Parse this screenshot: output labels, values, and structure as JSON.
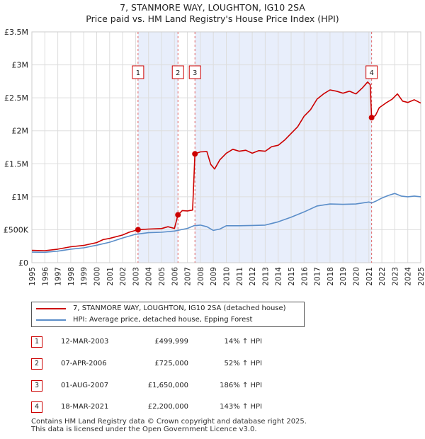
{
  "header": {
    "title": "7, STANMORE WAY, LOUGHTON, IG10 2SA",
    "subtitle": "Price paid vs. HM Land Registry's House Price Index (HPI)"
  },
  "chart_data": {
    "type": "line",
    "x_range": [
      1995,
      2025
    ],
    "ylim": [
      0,
      3500000
    ],
    "y_ticks": [
      {
        "value": 0,
        "label": "£0"
      },
      {
        "value": 500000,
        "label": "£500K"
      },
      {
        "value": 1000000,
        "label": "£1M"
      },
      {
        "value": 1500000,
        "label": "£1.5M"
      },
      {
        "value": 2000000,
        "label": "£2M"
      },
      {
        "value": 2500000,
        "label": "£2.5M"
      },
      {
        "value": 3000000,
        "label": "£3M"
      },
      {
        "value": 3500000,
        "label": "£3.5M"
      }
    ],
    "x_ticks": [
      "1995",
      "1996",
      "1997",
      "1998",
      "1999",
      "2000",
      "2001",
      "2002",
      "2003",
      "2004",
      "2005",
      "2006",
      "2007",
      "2008",
      "2009",
      "2010",
      "2011",
      "2012",
      "2013",
      "2014",
      "2015",
      "2016",
      "2017",
      "2018",
      "2019",
      "2020",
      "2021",
      "2022",
      "2023",
      "2024",
      "2025"
    ],
    "grid": true,
    "shaded_periods": [
      [
        2003.19,
        2006.27
      ],
      [
        2007.58,
        2021.21
      ]
    ],
    "series": [
      {
        "name": "7, STANMORE WAY, LOUGHTON, IG10 2SA (detached house)",
        "color": "#cc0000",
        "points": [
          [
            1995.0,
            187000
          ],
          [
            1996.0,
            183000
          ],
          [
            1997.0,
            205000
          ],
          [
            1998.0,
            242000
          ],
          [
            1999.0,
            262000
          ],
          [
            2000.0,
            305000
          ],
          [
            2000.5,
            350000
          ],
          [
            2001.0,
            368000
          ],
          [
            2002.0,
            420000
          ],
          [
            2002.5,
            462000
          ],
          [
            2003.19,
            499999
          ],
          [
            2004.0,
            510000
          ],
          [
            2005.0,
            518000
          ],
          [
            2005.5,
            545000
          ],
          [
            2006.0,
            520000
          ],
          [
            2006.27,
            725000
          ],
          [
            2006.6,
            790000
          ],
          [
            2007.0,
            785000
          ],
          [
            2007.4,
            798000
          ],
          [
            2007.58,
            1650000
          ],
          [
            2008.0,
            1680000
          ],
          [
            2008.5,
            1685000
          ],
          [
            2008.8,
            1490000
          ],
          [
            2009.1,
            1420000
          ],
          [
            2009.5,
            1560000
          ],
          [
            2010.0,
            1660000
          ],
          [
            2010.5,
            1720000
          ],
          [
            2011.0,
            1690000
          ],
          [
            2011.5,
            1705000
          ],
          [
            2012.0,
            1660000
          ],
          [
            2012.5,
            1700000
          ],
          [
            2013.0,
            1690000
          ],
          [
            2013.5,
            1760000
          ],
          [
            2014.0,
            1780000
          ],
          [
            2014.5,
            1860000
          ],
          [
            2015.0,
            1960000
          ],
          [
            2015.5,
            2060000
          ],
          [
            2016.0,
            2220000
          ],
          [
            2016.5,
            2320000
          ],
          [
            2017.0,
            2480000
          ],
          [
            2017.5,
            2560000
          ],
          [
            2018.0,
            2620000
          ],
          [
            2018.5,
            2600000
          ],
          [
            2019.0,
            2570000
          ],
          [
            2019.5,
            2600000
          ],
          [
            2020.0,
            2560000
          ],
          [
            2020.5,
            2650000
          ],
          [
            2020.9,
            2740000
          ],
          [
            2021.1,
            2700000
          ],
          [
            2021.21,
            2200000
          ],
          [
            2021.5,
            2230000
          ],
          [
            2021.8,
            2350000
          ],
          [
            2022.3,
            2420000
          ],
          [
            2022.8,
            2480000
          ],
          [
            2023.2,
            2560000
          ],
          [
            2023.6,
            2450000
          ],
          [
            2024.0,
            2430000
          ],
          [
            2024.5,
            2470000
          ],
          [
            2025.0,
            2420000
          ]
        ]
      },
      {
        "name": "HPI: Average price, detached house, Epping Forest",
        "color": "#5b8ec9",
        "points": [
          [
            1995.0,
            160000
          ],
          [
            1996.0,
            158000
          ],
          [
            1997.0,
            175000
          ],
          [
            1998.0,
            205000
          ],
          [
            1999.0,
            225000
          ],
          [
            2000.0,
            265000
          ],
          [
            2001.0,
            310000
          ],
          [
            2002.0,
            375000
          ],
          [
            2003.0,
            430000
          ],
          [
            2004.0,
            455000
          ],
          [
            2005.0,
            462000
          ],
          [
            2006.0,
            480000
          ],
          [
            2007.0,
            520000
          ],
          [
            2007.5,
            560000
          ],
          [
            2008.0,
            570000
          ],
          [
            2008.5,
            545000
          ],
          [
            2009.0,
            490000
          ],
          [
            2009.5,
            510000
          ],
          [
            2010.0,
            560000
          ],
          [
            2011.0,
            560000
          ],
          [
            2012.0,
            565000
          ],
          [
            2013.0,
            570000
          ],
          [
            2014.0,
            620000
          ],
          [
            2015.0,
            690000
          ],
          [
            2016.0,
            770000
          ],
          [
            2017.0,
            860000
          ],
          [
            2018.0,
            890000
          ],
          [
            2019.0,
            885000
          ],
          [
            2020.0,
            890000
          ],
          [
            2020.5,
            905000
          ],
          [
            2021.0,
            920000
          ],
          [
            2021.21,
            905000
          ],
          [
            2021.5,
            930000
          ],
          [
            2022.0,
            980000
          ],
          [
            2022.5,
            1020000
          ],
          [
            2023.0,
            1050000
          ],
          [
            2023.5,
            1010000
          ],
          [
            2024.0,
            1000000
          ],
          [
            2024.5,
            1010000
          ],
          [
            2025.0,
            1000000
          ]
        ]
      }
    ],
    "sale_points": [
      {
        "label": "1",
        "x": 2003.19,
        "y": 499999
      },
      {
        "label": "2",
        "x": 2006.27,
        "y": 725000
      },
      {
        "label": "3",
        "x": 2007.58,
        "y": 1650000
      },
      {
        "label": "4",
        "x": 2021.21,
        "y": 2200000
      }
    ]
  },
  "legend": {
    "property_label": "7, STANMORE WAY, LOUGHTON, IG10 2SA (detached house)",
    "hpi_label": "HPI: Average price, detached house, Epping Forest"
  },
  "transactions": [
    {
      "num": "1",
      "date": "12-MAR-2003",
      "price": "£499,999",
      "hpi": "14% ↑ HPI"
    },
    {
      "num": "2",
      "date": "07-APR-2006",
      "price": "£725,000",
      "hpi": "52% ↑ HPI"
    },
    {
      "num": "3",
      "date": "01-AUG-2007",
      "price": "£1,650,000",
      "hpi": "186% ↑ HPI"
    },
    {
      "num": "4",
      "date": "18-MAR-2021",
      "price": "£2,200,000",
      "hpi": "143% ↑ HPI"
    }
  ],
  "footer": {
    "line1": "Contains HM Land Registry data © Crown copyright and database right 2025.",
    "line2": "This data is licensed under the Open Government Licence v3.0."
  },
  "colors": {
    "property": "#cc0000",
    "hpi": "#5b8ec9",
    "shade": "#e8eefb",
    "grid": "#dddddd"
  }
}
